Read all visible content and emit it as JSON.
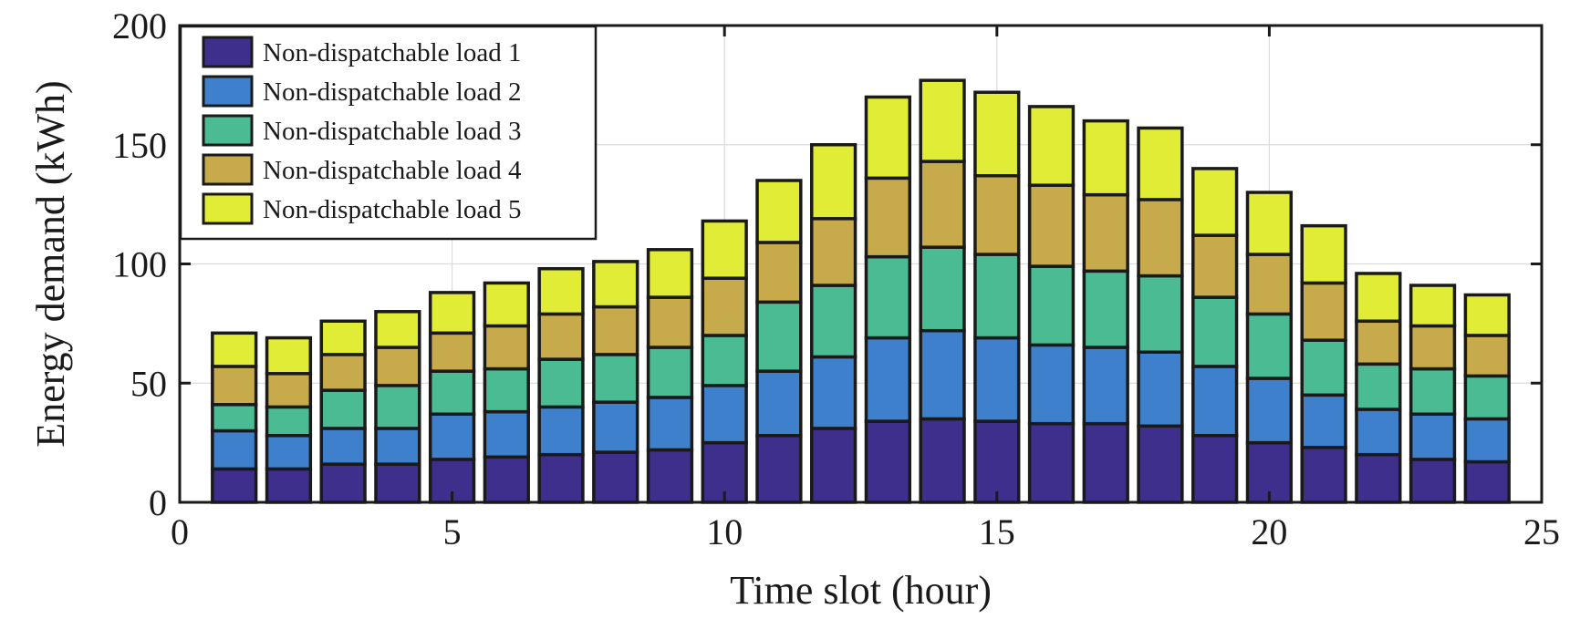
{
  "chart_data": {
    "type": "bar",
    "stacked": true,
    "title": "",
    "xlabel": "Time slot (hour)",
    "ylabel": "Energy demand (kWh)",
    "xlim": [
      0,
      25
    ],
    "ylim": [
      0,
      200
    ],
    "xticks": [
      0,
      5,
      10,
      15,
      20,
      25
    ],
    "yticks": [
      0,
      50,
      100,
      150,
      200
    ],
    "grid": true,
    "legend_position": "top-left",
    "categories": [
      1,
      2,
      3,
      4,
      5,
      6,
      7,
      8,
      9,
      10,
      11,
      12,
      13,
      14,
      15,
      16,
      17,
      18,
      19,
      20,
      21,
      22,
      23,
      24
    ],
    "series": [
      {
        "name": "Non-dispatchable load 1",
        "color": "#3e2f8c",
        "values": [
          14,
          14,
          16,
          16,
          18,
          19,
          20,
          21,
          22,
          25,
          28,
          31,
          34,
          35,
          34,
          33,
          33,
          32,
          28,
          25,
          23,
          20,
          18,
          17
        ]
      },
      {
        "name": "Non-dispatchable load 2",
        "color": "#3f80cc",
        "values": [
          16,
          14,
          15,
          15,
          19,
          19,
          20,
          21,
          22,
          24,
          27,
          30,
          35,
          37,
          35,
          33,
          32,
          31,
          29,
          27,
          22,
          19,
          19,
          18
        ]
      },
      {
        "name": "Non-dispatchable load 3",
        "color": "#4bbb94",
        "values": [
          11,
          12,
          16,
          18,
          18,
          18,
          20,
          20,
          21,
          21,
          29,
          30,
          34,
          35,
          35,
          33,
          32,
          32,
          29,
          27,
          23,
          19,
          19,
          18
        ]
      },
      {
        "name": "Non-dispatchable load 4",
        "color": "#c7aa4b",
        "values": [
          16,
          14,
          15,
          16,
          16,
          18,
          19,
          20,
          21,
          24,
          25,
          28,
          33,
          36,
          33,
          34,
          32,
          32,
          26,
          25,
          24,
          18,
          18,
          17
        ]
      },
      {
        "name": "Non-dispatchable load 5",
        "color": "#e0ec35",
        "values": [
          14,
          15,
          14,
          15,
          17,
          18,
          19,
          19,
          20,
          24,
          26,
          31,
          34,
          34,
          35,
          33,
          31,
          30,
          28,
          26,
          24,
          20,
          17,
          17
        ]
      }
    ]
  }
}
